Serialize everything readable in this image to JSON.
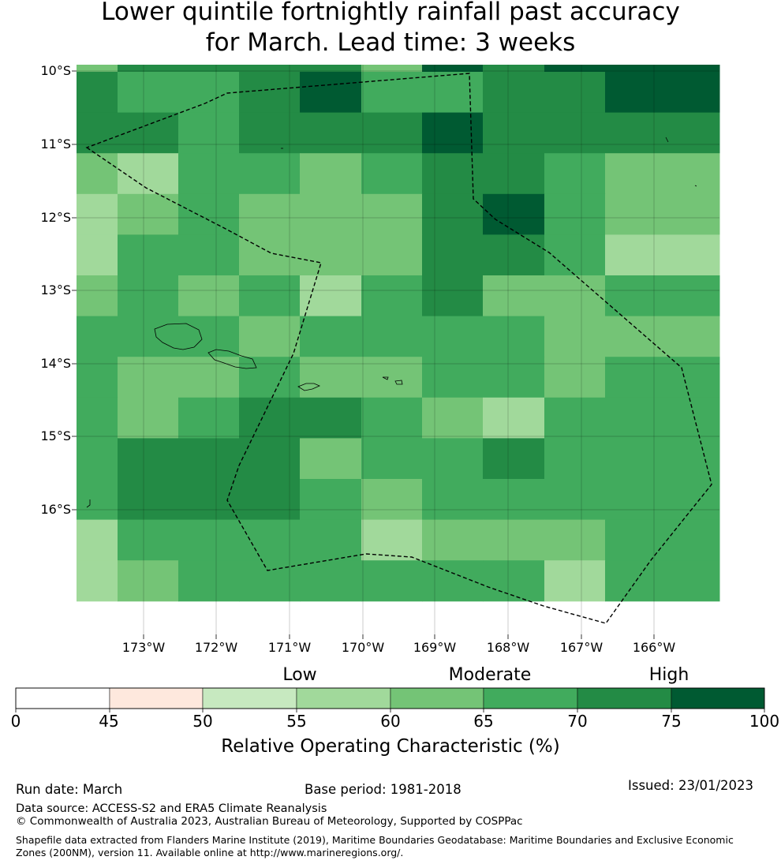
{
  "title_line1": "Lower quintile fortnightly rainfall past accuracy",
  "title_line2": "for March. Lead time: 3 weeks",
  "map": {
    "lat_labels": [
      "10°S",
      "11°S",
      "12°S",
      "13°S",
      "14°S",
      "15°S",
      "16°S"
    ],
    "lon_labels": [
      "173°W",
      "172°W",
      "171°W",
      "170°W",
      "169°W",
      "168°W",
      "167°W",
      "166°W"
    ],
    "grid_values": [
      [
        60,
        70,
        70,
        70,
        70,
        60,
        75,
        70,
        75,
        75
      ],
      [
        70,
        65,
        65,
        70,
        75,
        65,
        65,
        70,
        70,
        75
      ],
      [
        70,
        70,
        65,
        70,
        70,
        70,
        75,
        70,
        70,
        70
      ],
      [
        60,
        55,
        65,
        65,
        60,
        65,
        70,
        70,
        65,
        60
      ],
      [
        55,
        60,
        65,
        60,
        60,
        60,
        70,
        75,
        65,
        60
      ],
      [
        55,
        65,
        65,
        60,
        60,
        60,
        70,
        70,
        65,
        55
      ],
      [
        60,
        65,
        60,
        65,
        55,
        65,
        70,
        60,
        60,
        65
      ],
      [
        65,
        65,
        65,
        60,
        65,
        65,
        65,
        65,
        60,
        60
      ],
      [
        65,
        60,
        60,
        65,
        60,
        60,
        65,
        65,
        60,
        65
      ],
      [
        65,
        60,
        65,
        70,
        70,
        65,
        60,
        55,
        65,
        65
      ],
      [
        65,
        70,
        70,
        70,
        60,
        65,
        65,
        70,
        65,
        65
      ],
      [
        65,
        70,
        70,
        70,
        65,
        60,
        65,
        65,
        65,
        65
      ],
      [
        55,
        65,
        65,
        65,
        65,
        55,
        60,
        60,
        60,
        65
      ],
      [
        55,
        60,
        65,
        65,
        65,
        65,
        65,
        65,
        55,
        65
      ]
    ]
  },
  "colorbar": {
    "categories": [
      "Low",
      "Moderate",
      "High"
    ],
    "ticks": [
      "0",
      "45",
      "50",
      "55",
      "60",
      "65",
      "70",
      "75",
      "100"
    ],
    "colors": [
      "#ffffff",
      "#fee8dd",
      "#c7e9c0",
      "#a1d99b",
      "#74c476",
      "#41ab5d",
      "#238b45",
      "#005a32"
    ],
    "label": "Relative Operating Characteristic (%)"
  },
  "footer": {
    "run_date": "Run date: March",
    "base_period": "Base period: 1981-2018",
    "issued": "Issued: 23/01/2023",
    "data_source": "Data source: ACCESS-S2 and ERA5 Climate Reanalysis",
    "copyright": "© Commonwealth of Australia 2023, Australian Bureau of Meteorology, Supported by COSPPac",
    "shapefile_note": "Shapefile data extracted from Flanders Marine Institute (2019), Maritime Boundaries Geodatabase: Maritime Boundaries and Exclusive Economic Zones (200NM), version 11. Available online at http://www.marineregions.org/."
  }
}
